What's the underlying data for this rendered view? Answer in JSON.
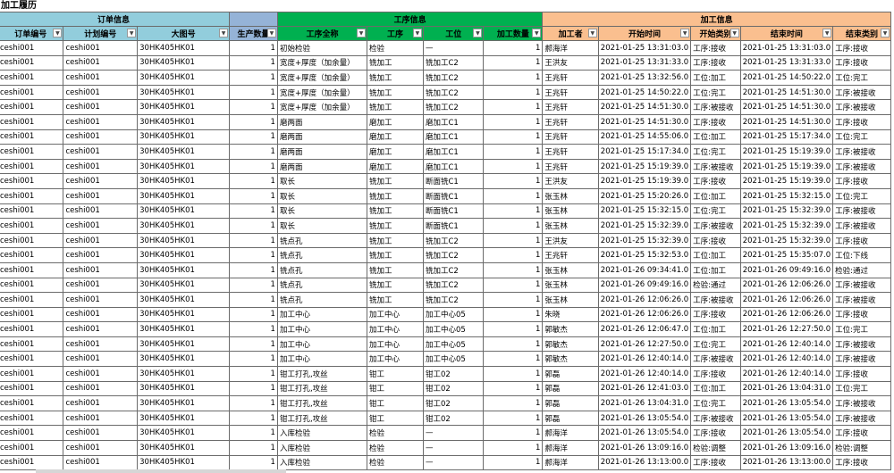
{
  "sheet_title": "加工履历",
  "groups": [
    {
      "label": "订单信息",
      "span": 3,
      "color": "#92cddc"
    },
    {
      "label": "",
      "span": 1,
      "color": "#95b3d7"
    },
    {
      "label": "工序信息",
      "span": 4,
      "color": "#00b050"
    },
    {
      "label": "加工信息",
      "span": 5,
      "color": "#fabf8f"
    }
  ],
  "columns": [
    "订单编号",
    "计划编号",
    "大图号",
    "生产数量",
    "工序全称",
    "工序",
    "工位",
    "加工数量",
    "加工者",
    "开始时间",
    "开始类别",
    "结束时间",
    "结束类别"
  ],
  "icons": {
    "filter": "dropdown-arrow-icon"
  },
  "rows": [
    [
      "ceshi001",
      "ceshi001",
      "30HK405HK01",
      "1",
      "初始检验",
      "检验",
      "—",
      "1",
      "郝海洋",
      "2021-01-25 13:31:03.0",
      "工序:接收",
      "2021-01-25 13:31:03.0",
      "工序:接收"
    ],
    [
      "ceshi001",
      "ceshi001",
      "30HK405HK01",
      "1",
      "宽度+厚度（加余量）",
      "铣加工",
      "铣加工C2",
      "1",
      "王洪友",
      "2021-01-25 13:31:33.0",
      "工序:接收",
      "2021-01-25 13:31:33.0",
      "工序:接收"
    ],
    [
      "ceshi001",
      "ceshi001",
      "30HK405HK01",
      "1",
      "宽度+厚度（加余量）",
      "铣加工",
      "铣加工C2",
      "1",
      "王兆轩",
      "2021-01-25 13:32:56.0",
      "工位:加工",
      "2021-01-25 14:50:22.0",
      "工位:完工"
    ],
    [
      "ceshi001",
      "ceshi001",
      "30HK405HK01",
      "1",
      "宽度+厚度（加余量）",
      "铣加工",
      "铣加工C2",
      "1",
      "王兆轩",
      "2021-01-25 14:50:22.0",
      "工位:完工",
      "2021-01-25 14:51:30.0",
      "工序:被接收"
    ],
    [
      "ceshi001",
      "ceshi001",
      "30HK405HK01",
      "1",
      "宽度+厚度（加余量）",
      "铣加工",
      "铣加工C2",
      "1",
      "王兆轩",
      "2021-01-25 14:51:30.0",
      "工序:被接收",
      "2021-01-25 14:51:30.0",
      "工序:被接收"
    ],
    [
      "ceshi001",
      "ceshi001",
      "30HK405HK01",
      "1",
      "磨两面",
      "磨加工",
      "磨加工C1",
      "1",
      "王兆轩",
      "2021-01-25 14:51:30.0",
      "工序:接收",
      "2021-01-25 14:51:30.0",
      "工序:接收"
    ],
    [
      "ceshi001",
      "ceshi001",
      "30HK405HK01",
      "1",
      "磨两面",
      "磨加工",
      "磨加工C1",
      "1",
      "王兆轩",
      "2021-01-25 14:55:06.0",
      "工位:加工",
      "2021-01-25 15:17:34.0",
      "工位:完工"
    ],
    [
      "ceshi001",
      "ceshi001",
      "30HK405HK01",
      "1",
      "磨两面",
      "磨加工",
      "磨加工C1",
      "1",
      "王兆轩",
      "2021-01-25 15:17:34.0",
      "工位:完工",
      "2021-01-25 15:19:39.0",
      "工序:被接收"
    ],
    [
      "ceshi001",
      "ceshi001",
      "30HK405HK01",
      "1",
      "磨两面",
      "磨加工",
      "磨加工C1",
      "1",
      "王兆轩",
      "2021-01-25 15:19:39.0",
      "工序:被接收",
      "2021-01-25 15:19:39.0",
      "工序:被接收"
    ],
    [
      "ceshi001",
      "ceshi001",
      "30HK405HK01",
      "1",
      "取长",
      "铣加工",
      "断面铣C1",
      "1",
      "王洪友",
      "2021-01-25 15:19:39.0",
      "工序:接收",
      "2021-01-25 15:19:39.0",
      "工序:接收"
    ],
    [
      "ceshi001",
      "ceshi001",
      "30HK405HK01",
      "1",
      "取长",
      "铣加工",
      "断面铣C1",
      "1",
      "张玉林",
      "2021-01-25 15:20:26.0",
      "工位:加工",
      "2021-01-25 15:32:15.0",
      "工位:完工"
    ],
    [
      "ceshi001",
      "ceshi001",
      "30HK405HK01",
      "1",
      "取长",
      "铣加工",
      "断面铣C1",
      "1",
      "张玉林",
      "2021-01-25 15:32:15.0",
      "工位:完工",
      "2021-01-25 15:32:39.0",
      "工序:被接收"
    ],
    [
      "ceshi001",
      "ceshi001",
      "30HK405HK01",
      "1",
      "取长",
      "铣加工",
      "断面铣C1",
      "1",
      "张玉林",
      "2021-01-25 15:32:39.0",
      "工序:被接收",
      "2021-01-25 15:32:39.0",
      "工序:被接收"
    ],
    [
      "ceshi001",
      "ceshi001",
      "30HK405HK01",
      "1",
      "铣点孔",
      "铣加工",
      "铣加工C2",
      "1",
      "王洪友",
      "2021-01-25 15:32:39.0",
      "工序:接收",
      "2021-01-25 15:32:39.0",
      "工序:接收"
    ],
    [
      "ceshi001",
      "ceshi001",
      "30HK405HK01",
      "1",
      "铣点孔",
      "铣加工",
      "铣加工C2",
      "1",
      "王兆轩",
      "2021-01-25 15:32:53.0",
      "工位:加工",
      "2021-01-25 15:35:07.0",
      "工位:下线"
    ],
    [
      "ceshi001",
      "ceshi001",
      "30HK405HK01",
      "1",
      "铣点孔",
      "铣加工",
      "铣加工C2",
      "1",
      "张玉林",
      "2021-01-26 09:34:41.0",
      "工位:加工",
      "2021-01-26 09:49:16.0",
      "检验:通过"
    ],
    [
      "ceshi001",
      "ceshi001",
      "30HK405HK01",
      "1",
      "铣点孔",
      "铣加工",
      "铣加工C2",
      "1",
      "张玉林",
      "2021-01-26 09:49:16.0",
      "检验:通过",
      "2021-01-26 12:06:26.0",
      "工序:被接收"
    ],
    [
      "ceshi001",
      "ceshi001",
      "30HK405HK01",
      "1",
      "铣点孔",
      "铣加工",
      "铣加工C2",
      "1",
      "张玉林",
      "2021-01-26 12:06:26.0",
      "工序:被接收",
      "2021-01-26 12:06:26.0",
      "工序:被接收"
    ],
    [
      "ceshi001",
      "ceshi001",
      "30HK405HK01",
      "1",
      "加工中心",
      "加工中心",
      "加工中心05",
      "1",
      "朱晓",
      "2021-01-26 12:06:26.0",
      "工序:接收",
      "2021-01-26 12:06:26.0",
      "工序:接收"
    ],
    [
      "ceshi001",
      "ceshi001",
      "30HK405HK01",
      "1",
      "加工中心",
      "加工中心",
      "加工中心05",
      "1",
      "郭敏杰",
      "2021-01-26 12:06:47.0",
      "工位:加工",
      "2021-01-26 12:27:50.0",
      "工位:完工"
    ],
    [
      "ceshi001",
      "ceshi001",
      "30HK405HK01",
      "1",
      "加工中心",
      "加工中心",
      "加工中心05",
      "1",
      "郭敏杰",
      "2021-01-26 12:27:50.0",
      "工位:完工",
      "2021-01-26 12:40:14.0",
      "工序:被接收"
    ],
    [
      "ceshi001",
      "ceshi001",
      "30HK405HK01",
      "1",
      "加工中心",
      "加工中心",
      "加工中心05",
      "1",
      "郭敏杰",
      "2021-01-26 12:40:14.0",
      "工序:被接收",
      "2021-01-26 12:40:14.0",
      "工序:被接收"
    ],
    [
      "ceshi001",
      "ceshi001",
      "30HK405HK01",
      "1",
      "钳工打孔,攻丝",
      "钳工",
      "钳工02",
      "1",
      "郭磊",
      "2021-01-26 12:40:14.0",
      "工序:接收",
      "2021-01-26 12:40:14.0",
      "工序:接收"
    ],
    [
      "ceshi001",
      "ceshi001",
      "30HK405HK01",
      "1",
      "钳工打孔,攻丝",
      "钳工",
      "钳工02",
      "1",
      "郭磊",
      "2021-01-26 12:41:03.0",
      "工位:加工",
      "2021-01-26 13:04:31.0",
      "工位:完工"
    ],
    [
      "ceshi001",
      "ceshi001",
      "30HK405HK01",
      "1",
      "钳工打孔,攻丝",
      "钳工",
      "钳工02",
      "1",
      "郭磊",
      "2021-01-26 13:04:31.0",
      "工位:完工",
      "2021-01-26 13:05:54.0",
      "工序:被接收"
    ],
    [
      "ceshi001",
      "ceshi001",
      "30HK405HK01",
      "1",
      "钳工打孔,攻丝",
      "钳工",
      "钳工02",
      "1",
      "郭磊",
      "2021-01-26 13:05:54.0",
      "工序:被接收",
      "2021-01-26 13:05:54.0",
      "工序:被接收"
    ],
    [
      "ceshi001",
      "ceshi001",
      "30HK405HK01",
      "1",
      "入库检验",
      "检验",
      "—",
      "1",
      "郝海洋",
      "2021-01-26 13:05:54.0",
      "工序:接收",
      "2021-01-26 13:05:54.0",
      "工序:接收"
    ],
    [
      "ceshi001",
      "ceshi001",
      "30HK405HK01",
      "1",
      "入库检验",
      "检验",
      "—",
      "1",
      "郝海洋",
      "2021-01-26 13:09:16.0",
      "检验:调整",
      "2021-01-26 13:09:16.0",
      "检验:调整"
    ],
    [
      "ceshi001",
      "ceshi001",
      "30HK405HK01",
      "1",
      "入库检验",
      "检验",
      "—",
      "1",
      "郝海洋",
      "2021-01-26 13:13:00.0",
      "工序:接收",
      "2021-01-26 13:13:00.0",
      "工序:接收"
    ]
  ]
}
